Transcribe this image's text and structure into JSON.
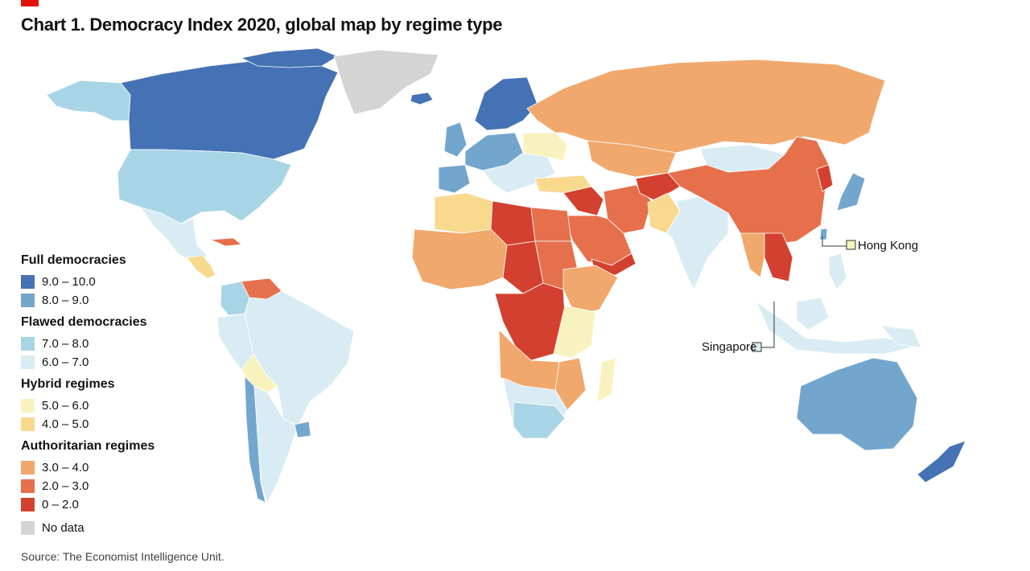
{
  "title": "Chart 1. Democracy Index 2020, global map by regime type",
  "source": "Source: The Economist Intelligence Unit.",
  "legend": [
    {
      "heading": "Full democracies",
      "items": [
        {
          "label": "9.0 – 10.0",
          "color": "#4472b4"
        },
        {
          "label": "8.0 – 9.0",
          "color": "#73a6cd"
        }
      ]
    },
    {
      "heading": "Flawed democracies",
      "items": [
        {
          "label": "7.0 – 8.0",
          "color": "#a8d5e6"
        },
        {
          "label": "6.0 – 7.0",
          "color": "#d9ecf3"
        }
      ]
    },
    {
      "heading": "Hybrid regimes",
      "items": [
        {
          "label": "5.0 – 6.0",
          "color": "#f8f3be"
        },
        {
          "label": "4.0 – 5.0",
          "color": "#f8d98e"
        }
      ]
    },
    {
      "heading": "Authoritarian regimes",
      "items": [
        {
          "label": "3.0 – 4.0",
          "color": "#f0a86c"
        },
        {
          "label": "2.0 – 3.0",
          "color": "#e6704c"
        },
        {
          "label": "0 – 2.0",
          "color": "#d3402f"
        }
      ]
    },
    {
      "heading": "",
      "items": [
        {
          "label": "No data",
          "color": "#d4d4d4"
        }
      ]
    }
  ],
  "callouts": {
    "hong_kong": {
      "label": "Hong Kong",
      "color": "#f8f3be"
    },
    "singapore": {
      "label": "Singapore",
      "color": "#d9ecf3"
    }
  },
  "colors": {
    "full_high": "#4472b4",
    "full_low": "#73a6cd",
    "flawed_high": "#a8d5e6",
    "flawed_low": "#d9ecf3",
    "hybrid_high": "#f8f3be",
    "hybrid_low": "#f8d98e",
    "auth_high": "#f0a86c",
    "auth_mid": "#e6704c",
    "auth_low": "#d3402f",
    "no_data": "#d4d4d4",
    "border": "#ffffff"
  }
}
